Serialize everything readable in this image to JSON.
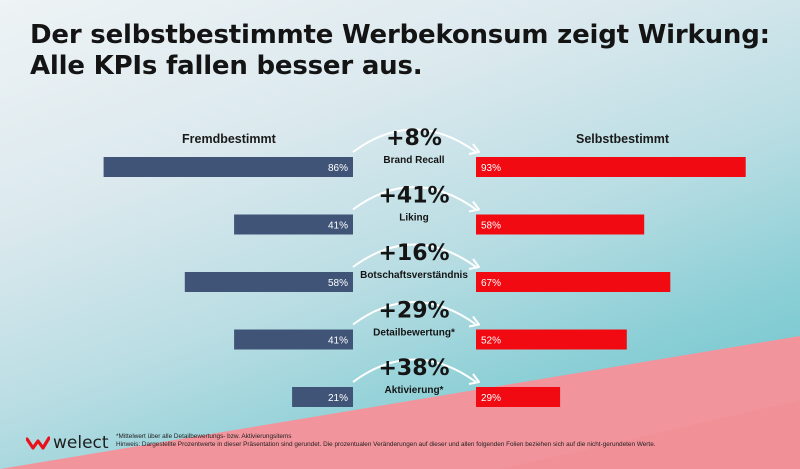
{
  "title": {
    "line1": "Der selbstbestimmte Werbekonsum zeigt Wirkung:",
    "line2": "Alle KPIs fallen besser aus."
  },
  "colors": {
    "left_bar": "#3f5477",
    "right_bar": "#f20a12",
    "bg_pink": "#f2949c"
  },
  "logo": {
    "text": "welect",
    "icon": "welect-chevron-logo"
  },
  "footnote": {
    "line1": "*Mittelwert über alle Detailbewertungs- bzw. Aktivierungsitems",
    "line2": "Hinweis: Dargestellte Prozentwerte in dieser Präsentation sind gerundet. Die prozentualen Veränderungen auf dieser und allen folgenden Folien beziehen sich auf die nicht-gerundeten Werte."
  },
  "chart_data": {
    "type": "bar",
    "orientation": "horizontal-butterfly",
    "left_label": "Fremdbestimmt",
    "right_label": "Selbstbestimmt",
    "categories": [
      "Brand Recall",
      "Liking",
      "Botschaftsverständnis",
      "Detailbewertung*",
      "Aktivierung*"
    ],
    "series": [
      {
        "name": "Fremdbestimmt",
        "side": "left",
        "values": [
          86,
          41,
          58,
          41,
          21
        ],
        "labels": [
          "86%",
          "41%",
          "58%",
          "41%",
          "21%"
        ]
      },
      {
        "name": "Selbstbestimmt",
        "side": "right",
        "values": [
          93,
          58,
          67,
          52,
          29
        ],
        "labels": [
          "93%",
          "58%",
          "67%",
          "52%",
          "29%"
        ]
      }
    ],
    "changes": [
      "+8%",
      "+41%",
      "+16%",
      "+29%",
      "+38%"
    ],
    "max": 100
  }
}
